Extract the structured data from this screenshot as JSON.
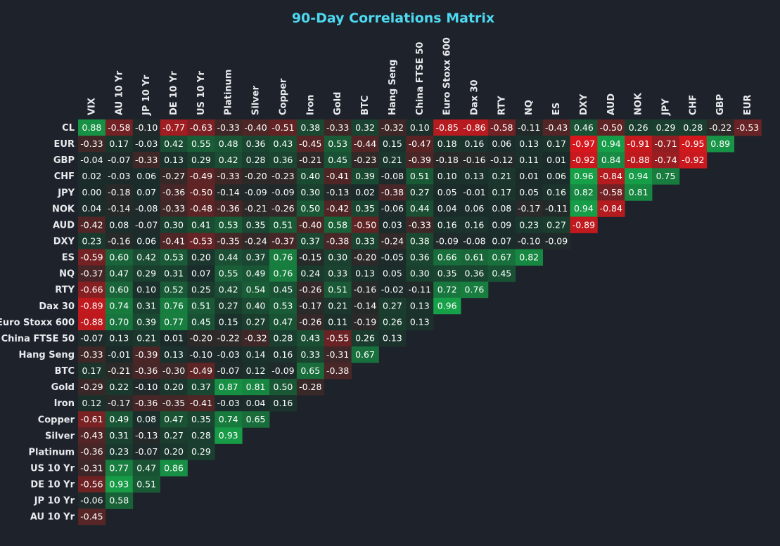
{
  "chart_data": {
    "type": "heatmap",
    "title": "90-Day Correlations Matrix",
    "xlabel": "",
    "ylabel": "",
    "columns": [
      "VIX",
      "AU 10 Yr",
      "JP 10 Yr",
      "DE 10 Yr",
      "US 10 Yr",
      "Platinum",
      "Silver",
      "Copper",
      "Iron",
      "Gold",
      "BTC",
      "Hang Seng",
      "China FTSE 50",
      "Euro Stoxx 600",
      "Dax 30",
      "RTY",
      "NQ",
      "ES",
      "DXY",
      "AUD",
      "NOK",
      "JPY",
      "CHF",
      "GBP",
      "EUR"
    ],
    "rows": [
      {
        "label": "CL",
        "values": [
          0.88,
          -0.58,
          -0.1,
          -0.77,
          -0.63,
          -0.33,
          -0.4,
          -0.51,
          0.38,
          -0.33,
          0.32,
          -0.32,
          0.1,
          -0.85,
          -0.86,
          -0.58,
          -0.11,
          -0.43,
          0.46,
          -0.5,
          0.26,
          0.29,
          0.28,
          -0.22,
          -0.53
        ]
      },
      {
        "label": "EUR",
        "values": [
          -0.33,
          0.17,
          -0.03,
          0.42,
          0.55,
          0.48,
          0.36,
          0.43,
          -0.45,
          0.53,
          -0.44,
          0.15,
          -0.47,
          0.18,
          0.16,
          0.06,
          0.13,
          0.17,
          -0.97,
          0.94,
          -0.91,
          -0.71,
          -0.95,
          0.89
        ]
      },
      {
        "label": "GBP",
        "values": [
          -0.04,
          -0.07,
          -0.33,
          0.13,
          0.29,
          0.42,
          0.28,
          0.36,
          -0.21,
          0.45,
          -0.23,
          0.21,
          -0.39,
          -0.18,
          -0.16,
          -0.12,
          0.11,
          0.01,
          -0.92,
          0.84,
          -0.88,
          -0.74,
          -0.92
        ]
      },
      {
        "label": "CHF",
        "values": [
          0.02,
          -0.03,
          0.06,
          -0.27,
          -0.49,
          -0.33,
          -0.2,
          -0.23,
          0.4,
          -0.41,
          0.39,
          -0.08,
          0.51,
          0.1,
          0.13,
          0.21,
          0.01,
          0.06,
          0.96,
          -0.84,
          0.94,
          0.75
        ]
      },
      {
        "label": "JPY",
        "values": [
          0.0,
          -0.18,
          0.07,
          -0.36,
          -0.5,
          -0.14,
          -0.09,
          -0.09,
          0.3,
          -0.13,
          0.02,
          -0.38,
          0.27,
          0.05,
          -0.01,
          0.17,
          0.05,
          0.16,
          0.82,
          -0.58,
          0.81
        ]
      },
      {
        "label": "NOK",
        "values": [
          0.04,
          -0.14,
          -0.08,
          -0.33,
          -0.48,
          -0.36,
          -0.21,
          -0.26,
          0.5,
          -0.42,
          0.35,
          -0.06,
          0.44,
          0.04,
          0.06,
          0.08,
          -0.17,
          -0.11,
          0.94,
          -0.84
        ]
      },
      {
        "label": "AUD",
        "values": [
          -0.42,
          0.08,
          -0.07,
          0.3,
          0.41,
          0.53,
          0.35,
          0.51,
          -0.4,
          0.58,
          -0.5,
          0.03,
          -0.33,
          0.16,
          0.16,
          0.09,
          0.23,
          0.27,
          -0.89
        ]
      },
      {
        "label": "DXY",
        "values": [
          0.23,
          -0.16,
          0.06,
          -0.41,
          -0.53,
          -0.35,
          -0.24,
          -0.37,
          0.37,
          -0.38,
          0.33,
          -0.24,
          0.38,
          -0.09,
          -0.08,
          0.07,
          -0.1,
          -0.09
        ]
      },
      {
        "label": "ES",
        "values": [
          -0.59,
          0.6,
          0.42,
          0.53,
          0.2,
          0.44,
          0.37,
          0.76,
          -0.15,
          0.3,
          -0.2,
          -0.05,
          0.36,
          0.66,
          0.61,
          0.67,
          0.82
        ]
      },
      {
        "label": "NQ",
        "values": [
          -0.37,
          0.47,
          0.29,
          0.31,
          0.07,
          0.55,
          0.49,
          0.76,
          0.24,
          0.33,
          0.13,
          0.05,
          0.3,
          0.35,
          0.36,
          0.45
        ]
      },
      {
        "label": "RTY",
        "values": [
          -0.66,
          0.6,
          0.1,
          0.52,
          0.25,
          0.42,
          0.54,
          0.45,
          -0.26,
          0.51,
          -0.16,
          -0.02,
          -0.11,
          0.72,
          0.76
        ]
      },
      {
        "label": "Dax 30",
        "values": [
          -0.89,
          0.74,
          0.31,
          0.76,
          0.51,
          0.27,
          0.4,
          0.53,
          -0.17,
          0.21,
          -0.14,
          0.27,
          0.13,
          0.96
        ]
      },
      {
        "label": "Euro Stoxx 600",
        "values": [
          -0.88,
          0.7,
          0.39,
          0.77,
          0.45,
          0.15,
          0.27,
          0.47,
          -0.26,
          0.11,
          -0.19,
          0.26,
          0.13
        ]
      },
      {
        "label": "China FTSE 50",
        "values": [
          -0.07,
          0.13,
          0.21,
          0.01,
          -0.2,
          -0.22,
          -0.32,
          0.28,
          0.43,
          -0.55,
          0.26,
          0.13
        ]
      },
      {
        "label": "Hang Seng",
        "values": [
          -0.33,
          -0.01,
          -0.39,
          0.13,
          -0.1,
          -0.03,
          0.14,
          0.16,
          0.33,
          -0.31,
          0.67
        ]
      },
      {
        "label": "BTC",
        "values": [
          0.17,
          -0.21,
          -0.36,
          -0.3,
          -0.49,
          -0.07,
          0.12,
          -0.09,
          0.65,
          -0.38
        ]
      },
      {
        "label": "Gold",
        "values": [
          -0.29,
          0.22,
          -0.1,
          0.2,
          0.37,
          0.87,
          0.81,
          0.5,
          -0.28
        ]
      },
      {
        "label": "Iron",
        "values": [
          0.12,
          -0.17,
          -0.36,
          -0.35,
          -0.41,
          -0.03,
          0.04,
          0.16
        ]
      },
      {
        "label": "Copper",
        "values": [
          -0.61,
          0.49,
          0.08,
          0.47,
          0.35,
          0.74,
          0.65
        ]
      },
      {
        "label": "Silver",
        "values": [
          -0.43,
          0.31,
          -0.13,
          0.27,
          0.28,
          0.93
        ]
      },
      {
        "label": "Platinum",
        "values": [
          -0.36,
          0.23,
          -0.07,
          0.2,
          0.29
        ]
      },
      {
        "label": "US 10 Yr",
        "values": [
          -0.31,
          0.77,
          0.47,
          0.86
        ]
      },
      {
        "label": "DE 10 Yr",
        "values": [
          -0.56,
          0.93,
          0.51
        ]
      },
      {
        "label": "JP 10 Yr",
        "values": [
          -0.06,
          0.58
        ]
      },
      {
        "label": "AU 10 Yr",
        "values": [
          -0.45
        ]
      }
    ],
    "value_range": [
      -1,
      1
    ],
    "colors": {
      "background": "#1e222b",
      "title": "#4dd9f0",
      "negative_strong": "#e0161c",
      "positive_strong": "#16a84a",
      "neutral": "#1b2b2a"
    },
    "grid": false,
    "legend": "none"
  }
}
